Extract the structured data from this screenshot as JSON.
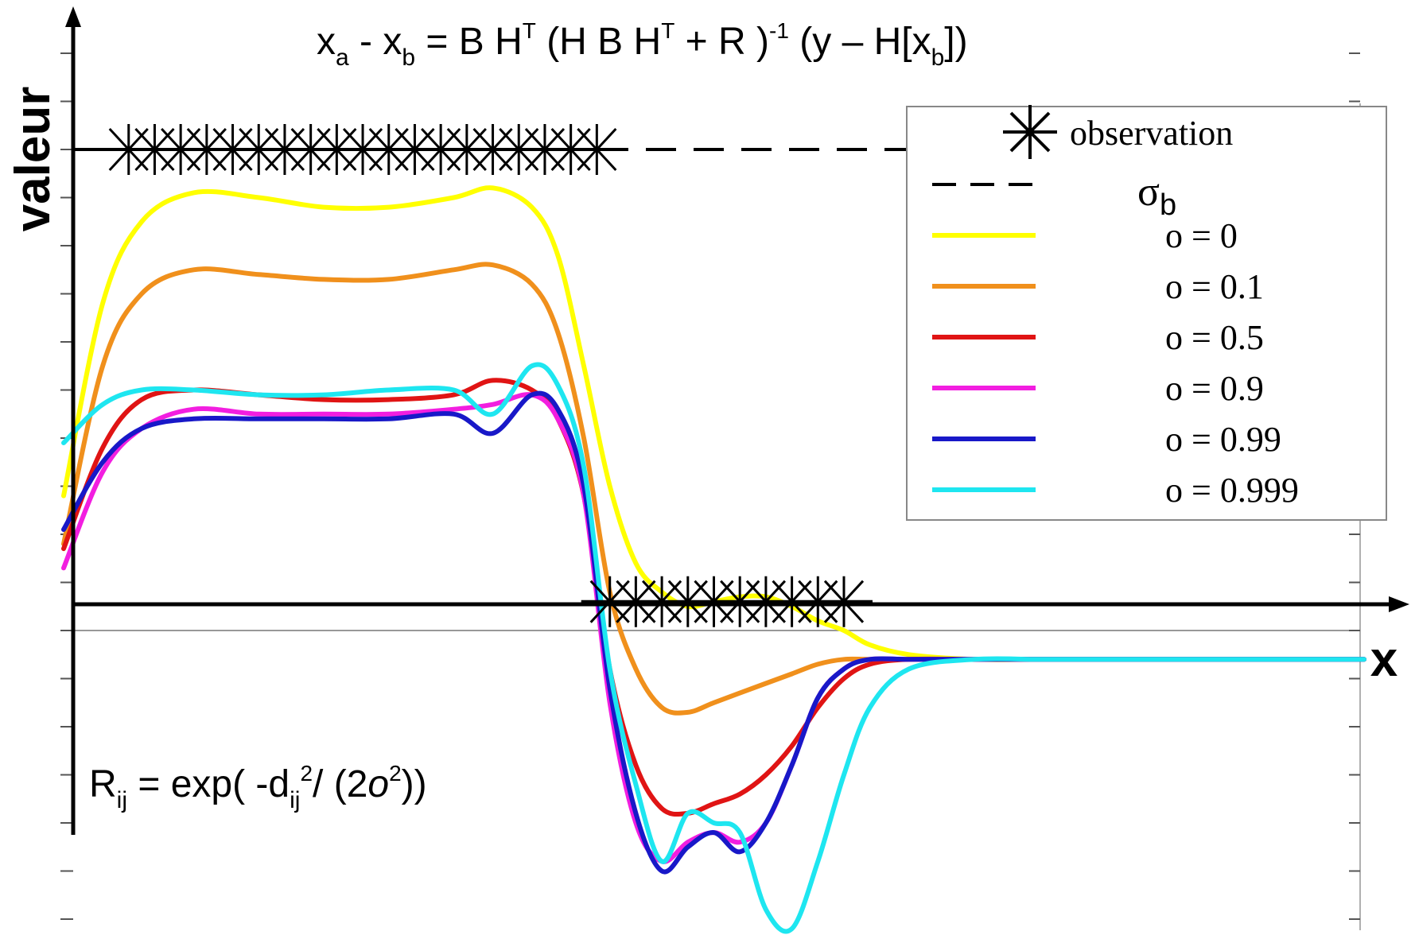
{
  "chart_data": {
    "type": "line",
    "formula_top": {
      "x": "x",
      "a": "a",
      "minus": " - ",
      "b": "b",
      "eq_bh": " = B H",
      "T": "T",
      "paren_hbh": " (H B H",
      "plus_r": " + R )",
      "inv": "-1",
      "y_h": " (y – H[x",
      "close": "])"
    },
    "formula_bottom": {
      "R": "R",
      "ij": "ij",
      "exp": " = exp( -d",
      "ij2": "ij",
      "two": "2",
      "slash": "/ (2",
      "o": "o",
      "sq": "2",
      "close": "))"
    },
    "ylabel": "valeur",
    "xlabel": "x",
    "legend": {
      "observation_label": "observation",
      "sigma_label": "σ",
      "sigma_sub": "b",
      "entries": [
        {
          "label": "o = 0",
          "color": "#ffff00"
        },
        {
          "label": "o = 0.1",
          "color": "#f0901c"
        },
        {
          "label": "o = 0.5",
          "color": "#e01414"
        },
        {
          "label": "o = 0.9",
          "color": "#f21ee0"
        },
        {
          "label": "o = 0.99",
          "color": "#1818c8"
        },
        {
          "label": "o = 0.999",
          "color": "#1ee6f0"
        }
      ]
    },
    "sigma_b_level": 1.0,
    "observations": [
      {
        "x": [
          0.05,
          0.07,
          0.09,
          0.11,
          0.13,
          0.15,
          0.17,
          0.19,
          0.21,
          0.23,
          0.25,
          0.27,
          0.29,
          0.31,
          0.33,
          0.35,
          0.37,
          0.39,
          0.41
        ],
        "y": 1.0
      },
      {
        "x": [
          0.42,
          0.44,
          0.46,
          0.48,
          0.5,
          0.52,
          0.54,
          0.56,
          0.58,
          0.6
        ],
        "y": 0.06
      }
    ],
    "x": [
      0.0,
      0.03,
      0.06,
      0.1,
      0.15,
      0.2,
      0.25,
      0.3,
      0.33,
      0.36,
      0.38,
      0.4,
      0.42,
      0.44,
      0.46,
      0.48,
      0.5,
      0.52,
      0.54,
      0.56,
      0.58,
      0.6,
      0.62,
      0.65,
      0.7,
      0.75,
      0.8,
      0.9,
      1.0
    ],
    "series": [
      {
        "name": "o = 0",
        "color": "#ffff00",
        "y": [
          0.28,
          0.68,
          0.85,
          0.91,
          0.9,
          0.88,
          0.88,
          0.9,
          0.92,
          0.88,
          0.78,
          0.55,
          0.3,
          0.14,
          0.08,
          0.05,
          0.06,
          0.07,
          0.07,
          0.05,
          0.02,
          0.0,
          -0.03,
          -0.05,
          -0.06,
          -0.06,
          -0.06,
          -0.06,
          -0.06
        ]
      },
      {
        "name": "o = 0.1",
        "color": "#f0901c",
        "y": [
          0.18,
          0.55,
          0.7,
          0.75,
          0.74,
          0.73,
          0.73,
          0.75,
          0.76,
          0.72,
          0.62,
          0.4,
          0.08,
          -0.08,
          -0.16,
          -0.17,
          -0.15,
          -0.13,
          -0.11,
          -0.09,
          -0.07,
          -0.06,
          -0.06,
          -0.06,
          -0.06,
          -0.06,
          -0.06,
          -0.06,
          -0.06
        ]
      },
      {
        "name": "o = 0.5",
        "color": "#e01414",
        "y": [
          0.17,
          0.38,
          0.48,
          0.5,
          0.49,
          0.48,
          0.48,
          0.49,
          0.52,
          0.5,
          0.44,
          0.28,
          -0.08,
          -0.28,
          -0.37,
          -0.38,
          -0.36,
          -0.34,
          -0.3,
          -0.24,
          -0.16,
          -0.1,
          -0.07,
          -0.06,
          -0.06,
          -0.06,
          -0.06,
          -0.06,
          -0.06
        ]
      },
      {
        "name": "o = 0.9",
        "color": "#f21ee0",
        "y": [
          0.13,
          0.33,
          0.42,
          0.46,
          0.45,
          0.45,
          0.45,
          0.46,
          0.47,
          0.49,
          0.44,
          0.28,
          -0.15,
          -0.4,
          -0.48,
          -0.44,
          -0.42,
          -0.44,
          -0.4,
          -0.28,
          -0.14,
          -0.08,
          -0.06,
          -0.06,
          -0.06,
          -0.06,
          -0.06,
          -0.06,
          -0.06
        ]
      },
      {
        "name": "o = 0.99",
        "color": "#1818c8",
        "y": [
          0.21,
          0.35,
          0.42,
          0.44,
          0.44,
          0.44,
          0.44,
          0.45,
          0.41,
          0.49,
          0.46,
          0.3,
          -0.12,
          -0.38,
          -0.5,
          -0.45,
          -0.42,
          -0.46,
          -0.4,
          -0.28,
          -0.14,
          -0.08,
          -0.06,
          -0.06,
          -0.06,
          -0.06,
          -0.06,
          -0.06,
          -0.06
        ]
      },
      {
        "name": "o = 0.999",
        "color": "#1ee6f0",
        "y": [
          0.39,
          0.47,
          0.5,
          0.5,
          0.49,
          0.49,
          0.5,
          0.5,
          0.45,
          0.55,
          0.51,
          0.34,
          -0.08,
          -0.32,
          -0.48,
          -0.38,
          -0.4,
          -0.42,
          -0.58,
          -0.62,
          -0.48,
          -0.3,
          -0.16,
          -0.08,
          -0.06,
          -0.06,
          -0.06,
          -0.06,
          -0.06
        ]
      }
    ],
    "xlim": [
      0,
      1
    ],
    "ylim": [
      -0.62,
      1.22
    ],
    "grid": false,
    "legend_position": "top-right"
  }
}
